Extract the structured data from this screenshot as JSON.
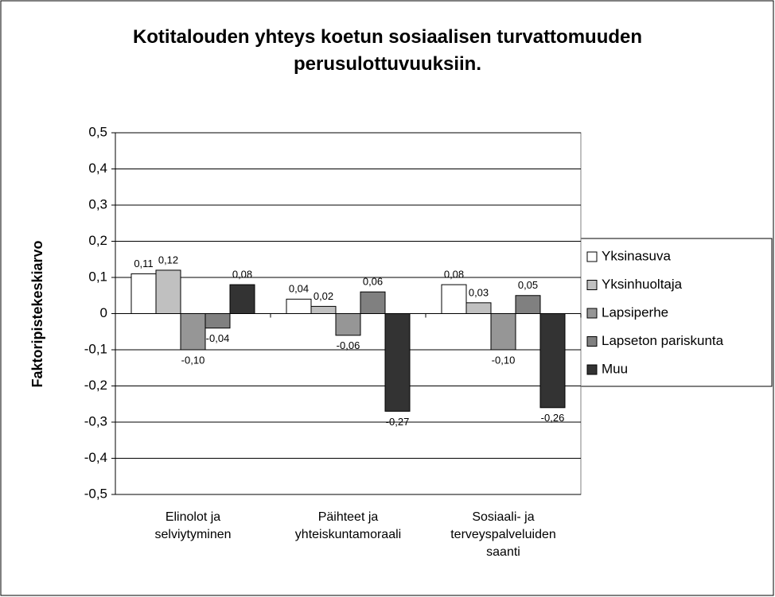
{
  "chart_data": {
    "type": "bar",
    "title": "Kotitalouden yhteys koetun sosiaalisen turvattomuuden perusulottuvuuksiin.",
    "y_label": "Faktoripistekeskiarvo",
    "categories": [
      "Elinolot ja selviytyminen",
      "Päihteet ja yhteiskuntamoraali",
      "Sosiaali- ja terveyspalveluiden saanti"
    ],
    "series": [
      {
        "name": "Yksinasuva",
        "color": "#ffffff",
        "values": [
          0.11,
          0.04,
          0.08
        ],
        "value_labels": [
          "0,11",
          "0,04",
          "0,08"
        ]
      },
      {
        "name": "Yksinhuoltaja",
        "color": "#c0c0c0",
        "values": [
          0.12,
          0.02,
          0.03
        ],
        "value_labels": [
          "0,12",
          "0,02",
          "0,03"
        ]
      },
      {
        "name": "Lapsiperhe",
        "color": "#969696",
        "values": [
          -0.1,
          -0.06,
          -0.1
        ],
        "value_labels": [
          "-0,10",
          "-0,06",
          "-0,10"
        ]
      },
      {
        "name": "Lapseton pariskunta",
        "color": "#808080",
        "values": [
          -0.04,
          0.06,
          0.05
        ],
        "value_labels": [
          "-0,04",
          "0,06",
          "0,05"
        ]
      },
      {
        "name": "Muu",
        "color": "#333333",
        "values": [
          0.08,
          -0.27,
          -0.26
        ],
        "value_labels": [
          "0,08",
          "-0,27",
          "-0,26"
        ]
      }
    ],
    "ylim": [
      -0.5,
      0.5
    ],
    "yticks": [
      {
        "value": -0.5,
        "label": "-0,5"
      },
      {
        "value": -0.4,
        "label": "-0,4"
      },
      {
        "value": -0.3,
        "label": "-0,3"
      },
      {
        "value": -0.2,
        "label": "-0,2"
      },
      {
        "value": -0.1,
        "label": "-0,1"
      },
      0,
      {
        "value": 0.1,
        "label": "0,1"
      },
      {
        "value": 0.2,
        "label": "0,2"
      },
      {
        "value": 0.3,
        "label": "0,3"
      },
      {
        "value": 0.4,
        "label": "0,4"
      },
      {
        "value": 0.5,
        "label": "0,5"
      }
    ],
    "grid": true,
    "legend": "right"
  }
}
